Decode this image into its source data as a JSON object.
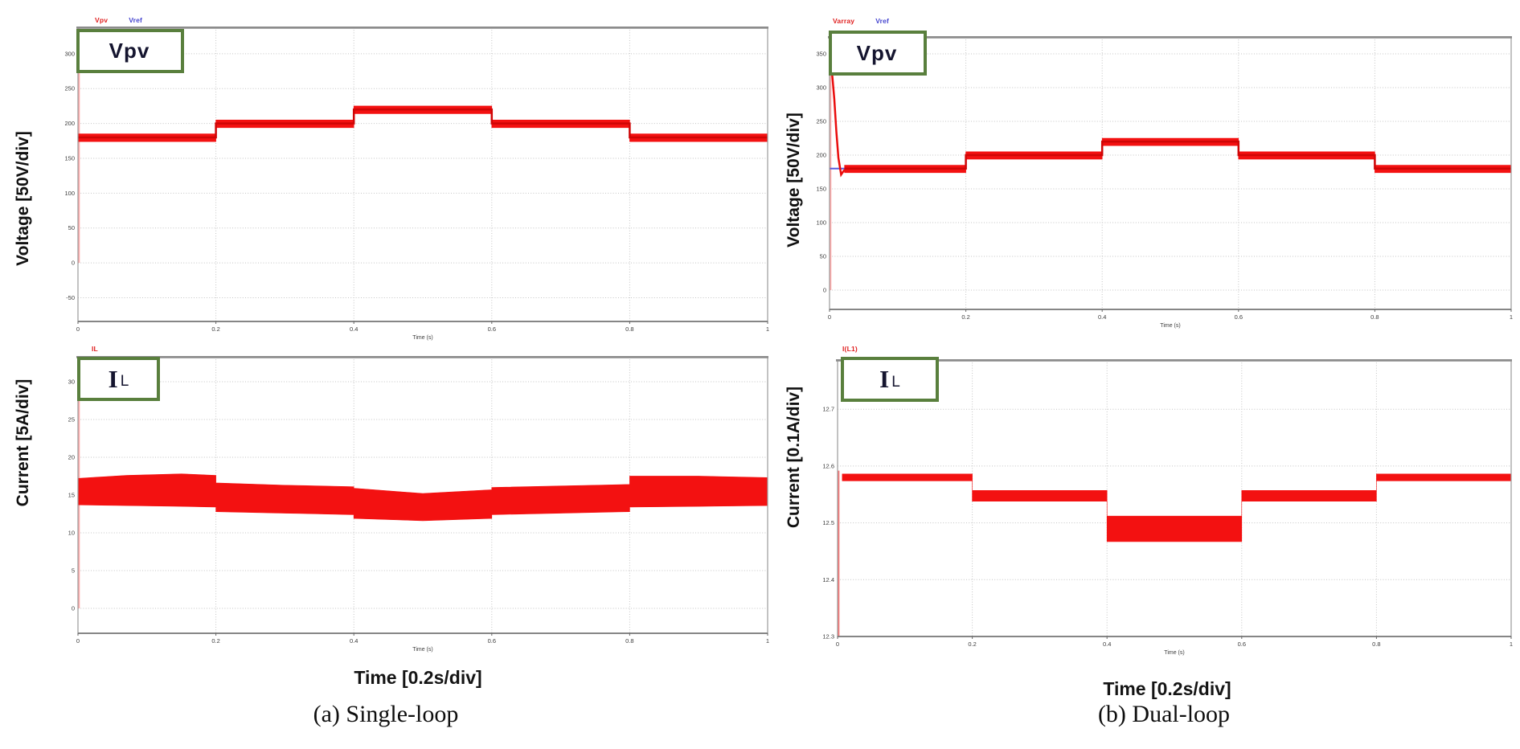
{
  "colors": {
    "trace_red": "#f31111",
    "ref_blue": "#5a5adf",
    "label_box_green": "#597f3d",
    "grid": "#c4c4c4",
    "background": "#ffffff"
  },
  "captions": {
    "left_voltage": "Voltage [50V/div]",
    "left_current": "Current [5A/div]",
    "right_voltage": "Voltage [50V/div]",
    "right_current": "Current [0.1A/div]",
    "time_left": "Time [0.2s/div]",
    "time_right": "Time [0.2s/div]",
    "sub_a": "(a) Single-loop",
    "sub_b": "(b) Dual-loop"
  },
  "chart_data": [
    {
      "id": "vpv-single",
      "type": "line",
      "title_box": {
        "main": "Vpv",
        "sub": ""
      },
      "legend": [
        {
          "label": "Vpv",
          "color": "#e02020"
        },
        {
          "label": "Vref",
          "color": "#4545cf"
        }
      ],
      "xlabel": "Time (s)",
      "xlim": [
        0,
        1
      ],
      "ylim": [
        -84,
        339
      ],
      "x_ticks": [
        0,
        0.2,
        0.4,
        0.6,
        0.8,
        1
      ],
      "x_tick_labels": [
        "0",
        "0.2",
        "0.4",
        "0.6",
        "0.8",
        "1"
      ],
      "y_ticks": [
        300,
        250,
        200,
        150,
        100,
        50,
        0,
        -50
      ],
      "y_tick_labels": [
        "300",
        "250",
        "200",
        "150",
        "100",
        "50",
        "0",
        "-50"
      ],
      "grid": true,
      "series": [
        {
          "name": "startup",
          "type": "vline",
          "x": 0.0015,
          "y0": 0,
          "y1": 339,
          "color": "#ffabab",
          "width": 2
        },
        {
          "name": "Vref",
          "type": "line",
          "color": "#5a5adf",
          "width": 2,
          "x": [
            0,
            0.2,
            0.2,
            0.4,
            0.4,
            0.6,
            0.6,
            0.8,
            0.8,
            1
          ],
          "y": [
            180,
            180,
            200,
            200,
            220,
            220,
            200,
            200,
            180,
            180
          ]
        },
        {
          "name": "Vpv",
          "type": "band",
          "color": "#f31111",
          "x": [
            0,
            0.2,
            0.2,
            0.4,
            0.4,
            0.6,
            0.6,
            0.8,
            0.8,
            1
          ],
          "upper": [
            185,
            185,
            205,
            205,
            225,
            225,
            205,
            205,
            185,
            185
          ],
          "lower": [
            174,
            174,
            194,
            194,
            214,
            214,
            194,
            194,
            174,
            174
          ]
        },
        {
          "name": "Vpv-core",
          "type": "line",
          "color": "#cf0606",
          "width": 2.5,
          "x": [
            0,
            0.2,
            0.2,
            0.4,
            0.4,
            0.6,
            0.6,
            0.8,
            0.8,
            1
          ],
          "y": [
            180,
            180,
            200,
            200,
            220,
            220,
            200,
            200,
            180,
            180
          ]
        }
      ]
    },
    {
      "id": "il-single",
      "type": "line",
      "title_box": {
        "main": "I",
        "sub": "L"
      },
      "legend": [
        {
          "label": "IL",
          "color": "#e02020"
        }
      ],
      "xlabel": "Time (s)",
      "xlim": [
        0,
        1
      ],
      "ylim": [
        -3.3,
        33.4
      ],
      "x_ticks": [
        0,
        0.2,
        0.4,
        0.6,
        0.8,
        1
      ],
      "x_tick_labels": [
        "0",
        "0.2",
        "0.4",
        "0.6",
        "0.8",
        "1"
      ],
      "y_ticks": [
        30,
        25,
        20,
        15,
        10,
        5,
        0
      ],
      "y_tick_labels": [
        "30",
        "25",
        "20",
        "15",
        "10",
        "5",
        "0"
      ],
      "grid": true,
      "series": [
        {
          "name": "startup",
          "type": "vline",
          "x": 0.0015,
          "y0": 0,
          "y1": 33,
          "color": "#ffabab",
          "width": 2
        },
        {
          "name": "IL",
          "type": "band",
          "color": "#f31111",
          "x": [
            0,
            0.07,
            0.15,
            0.2,
            0.2,
            0.3,
            0.4,
            0.4,
            0.5,
            0.6,
            0.6,
            0.7,
            0.8,
            0.8,
            0.9,
            1
          ],
          "upper": [
            17.2,
            17.6,
            17.8,
            17.6,
            16.6,
            16.3,
            16.1,
            15.9,
            15.2,
            15.7,
            16.0,
            16.2,
            16.4,
            17.5,
            17.5,
            17.3
          ],
          "lower": [
            13.7,
            13.6,
            13.5,
            13.4,
            12.8,
            12.6,
            12.4,
            11.9,
            11.6,
            11.9,
            12.4,
            12.6,
            12.8,
            13.4,
            13.5,
            13.6
          ]
        }
      ]
    },
    {
      "id": "vpv-dual",
      "type": "line",
      "title_box": {
        "main": "Vpv",
        "sub": ""
      },
      "legend": [
        {
          "label": "Varray",
          "color": "#e02020"
        },
        {
          "label": "Vref",
          "color": "#4545cf"
        }
      ],
      "xlabel": "Time (s)",
      "xlim": [
        0,
        1
      ],
      "ylim": [
        -28.6,
        376.2
      ],
      "x_ticks": [
        0,
        0.2,
        0.4,
        0.6,
        0.8,
        1
      ],
      "x_tick_labels": [
        "0",
        "0.2",
        "0.4",
        "0.6",
        "0.8",
        "1"
      ],
      "y_ticks": [
        350,
        300,
        250,
        200,
        150,
        100,
        50,
        0
      ],
      "y_tick_labels": [
        "350",
        "300",
        "250",
        "200",
        "150",
        "100",
        "50",
        "0"
      ],
      "grid": true,
      "series": [
        {
          "name": "startup",
          "type": "vline",
          "x": 0.0015,
          "y0": 0,
          "y1": 334,
          "color": "#ffabab",
          "width": 2
        },
        {
          "name": "Vref",
          "type": "line",
          "color": "#5a5adf",
          "width": 2,
          "x": [
            0,
            0.2,
            0.2,
            0.4,
            0.4,
            0.6,
            0.6,
            0.8,
            0.8,
            1
          ],
          "y": [
            180,
            180,
            200,
            200,
            220,
            220,
            200,
            200,
            180,
            180
          ]
        },
        {
          "name": "transient",
          "type": "line",
          "color": "#ea0c0c",
          "width": 2.5,
          "x": [
            0.0015,
            0.004,
            0.007,
            0.01,
            0.013,
            0.017,
            0.021,
            0.027
          ],
          "y": [
            334,
            318,
            283,
            235,
            196,
            171,
            177,
            180
          ]
        },
        {
          "name": "Varray",
          "type": "band",
          "color": "#f31111",
          "x": [
            0.022,
            0.2,
            0.2,
            0.4,
            0.4,
            0.6,
            0.6,
            0.8,
            0.8,
            1
          ],
          "upper": [
            185,
            185,
            205,
            205,
            225,
            225,
            205,
            205,
            185,
            185
          ],
          "lower": [
            174,
            174,
            194,
            194,
            214,
            214,
            194,
            194,
            174,
            174
          ]
        },
        {
          "name": "Varray-core",
          "type": "line",
          "color": "#cf0606",
          "width": 2.5,
          "x": [
            0.022,
            0.2,
            0.2,
            0.4,
            0.4,
            0.6,
            0.6,
            0.8,
            0.8,
            1
          ],
          "y": [
            180,
            180,
            200,
            200,
            220,
            220,
            200,
            200,
            180,
            180
          ]
        }
      ]
    },
    {
      "id": "il-dual",
      "type": "line",
      "title_box": {
        "main": "I",
        "sub": "L"
      },
      "legend": [
        {
          "label": "I(L1)",
          "color": "#e02020"
        }
      ],
      "xlabel": "Time (s)",
      "xlim": [
        0,
        1
      ],
      "ylim": [
        12.3,
        12.788
      ],
      "x_ticks": [
        0,
        0.2,
        0.4,
        0.6,
        0.8,
        1
      ],
      "x_tick_labels": [
        "0",
        "0.2",
        "0.4",
        "0.6",
        "0.8",
        "1"
      ],
      "y_ticks": [
        12.7,
        12.6,
        12.5,
        12.4,
        12.3
      ],
      "y_tick_labels": [
        "12.7",
        "12.6",
        "12.5",
        "12.4",
        "12.3"
      ],
      "grid": true,
      "series": [
        {
          "name": "startup",
          "type": "vline",
          "x": 0.0015,
          "y0": 12.3,
          "y1": 12.592,
          "color": "#f87b7b",
          "width": 2.2
        },
        {
          "name": "IL",
          "type": "band",
          "color": "#f31111",
          "x": [
            0.007,
            0.2,
            0.2,
            0.4,
            0.4,
            0.6,
            0.6,
            0.8,
            0.8,
            1
          ],
          "upper": [
            12.586,
            12.586,
            12.557,
            12.557,
            12.512,
            12.512,
            12.557,
            12.557,
            12.586,
            12.586
          ],
          "lower": [
            12.574,
            12.574,
            12.538,
            12.538,
            12.467,
            12.467,
            12.538,
            12.538,
            12.574,
            12.574
          ]
        }
      ]
    }
  ]
}
